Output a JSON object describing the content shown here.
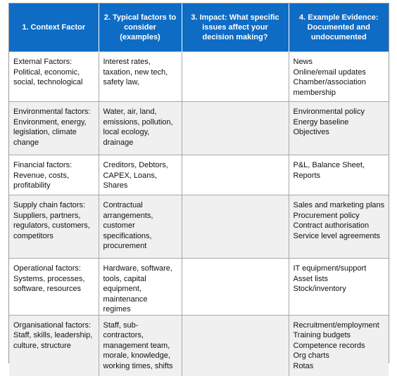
{
  "headers": [
    "1. Context Factor",
    "2. Typical factors to consider (examples)",
    "3. Impact: What specific issues affect your decision making?",
    "4. Example Evidence: Documented and undocumented"
  ],
  "rows": [
    {
      "factor": [
        "External Factors:",
        "Political, economic,",
        "social, technological"
      ],
      "typical": [
        "Interest rates,",
        "taxation, new tech,",
        "safety law,"
      ],
      "impact": [],
      "evidence": [
        "News",
        "Online/email updates",
        "Chamber/association",
        "membership"
      ]
    },
    {
      "factor": [
        "Environmental factors:",
        "Environment, energy,",
        "legislation, climate",
        "change"
      ],
      "typical": [
        "Water, air, land,",
        "emissions, pollution,",
        "local ecology,",
        "drainage"
      ],
      "impact": [],
      "evidence": [
        "Environmental policy",
        "Energy baseline",
        "Objectives"
      ]
    },
    {
      "factor": [
        "Financial factors:",
        "Revenue, costs,",
        "profitability"
      ],
      "typical": [
        "Creditors, Debtors,",
        "CAPEX, Loans,",
        "Shares"
      ],
      "impact": [],
      "evidence": [
        "P&L, Balance Sheet,",
        "Reports"
      ]
    },
    {
      "factor": [
        "Supply chain factors:",
        "Suppliers, partners,",
        "regulators, customers,",
        "competitors"
      ],
      "typical": [
        "Contractual",
        "arrangements,",
        "customer",
        "specifications,",
        "procurement"
      ],
      "impact": [],
      "evidence": [
        "Sales and marketing plans",
        "Procurement policy",
        "Contract authorisation",
        "Service level agreements"
      ]
    },
    {
      "factor": [
        "Operational factors:",
        "Systems, processes,",
        "software, resources"
      ],
      "typical": [
        "Hardware, software,",
        "tools, capital",
        "equipment,",
        "maintenance",
        "regimes"
      ],
      "impact": [],
      "evidence": [
        "IT equipment/support",
        "Asset lists",
        "Stock/inventory"
      ]
    },
    {
      "factor": [
        "Organisational factors:",
        "Staff, skills, leadership,",
        "culture, structure"
      ],
      "typical": [
        "Staff, sub-",
        "contractors,",
        "management team,",
        "morale, knowledge,",
        "working times, shifts"
      ],
      "impact": [],
      "evidence": [
        "Recruitment/employment",
        "Training budgets",
        "Competence records",
        "Org charts",
        "Rotas"
      ]
    }
  ]
}
